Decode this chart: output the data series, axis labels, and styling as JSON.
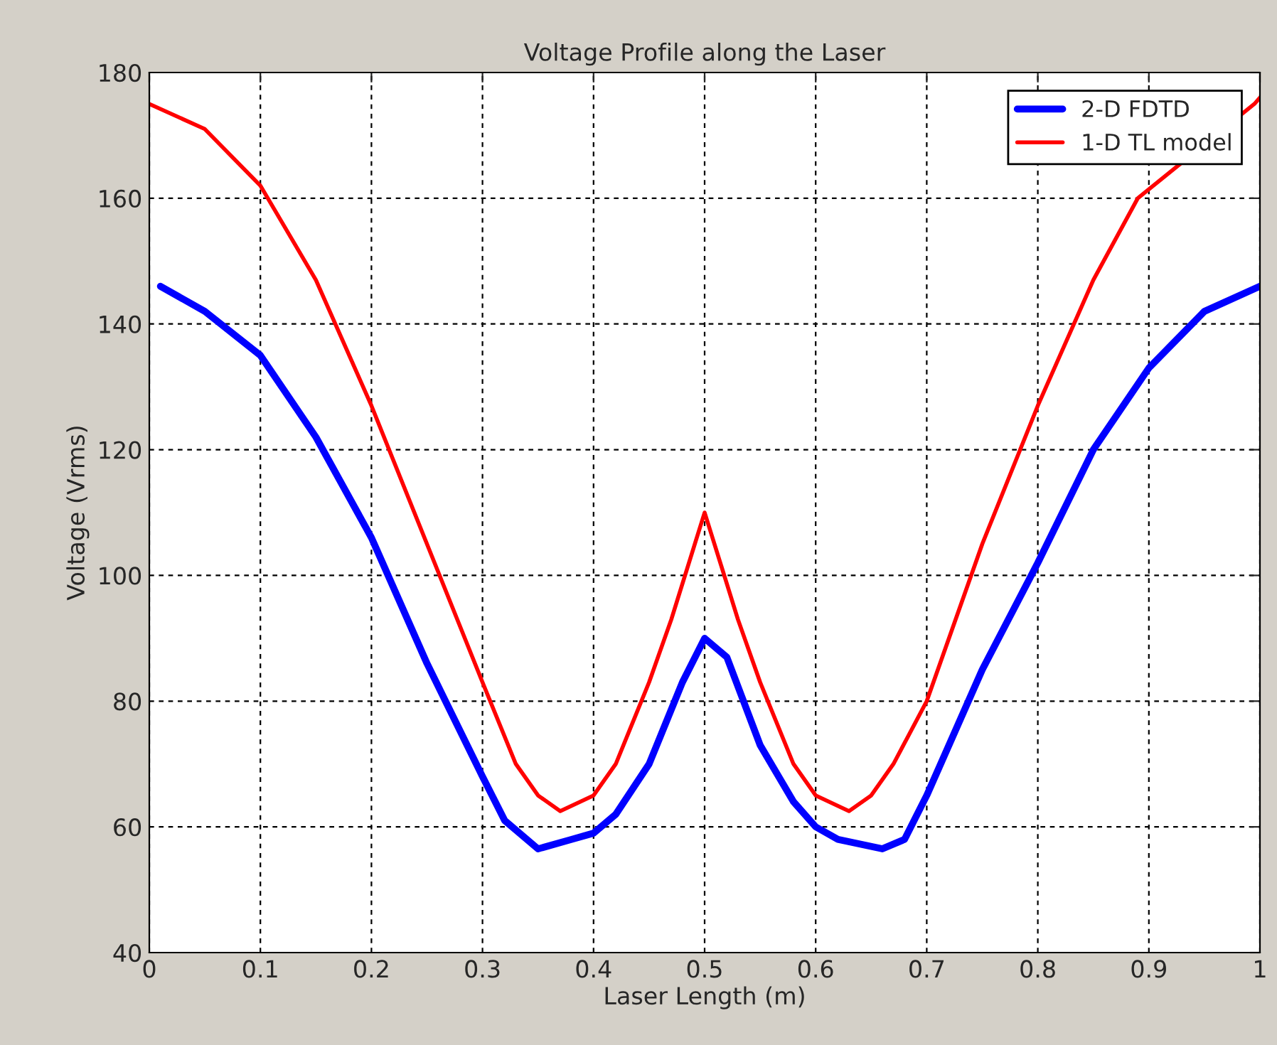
{
  "chart_data": {
    "type": "line",
    "title": "Voltage Profile along the Laser",
    "xlabel": "Laser Length (m)",
    "ylabel": "Voltage (Vrms)",
    "xlim": [
      0,
      1
    ],
    "ylim": [
      40,
      180
    ],
    "xticks": [
      0,
      0.1,
      0.2,
      0.3,
      0.4,
      0.5,
      0.6,
      0.7,
      0.8,
      0.9,
      1
    ],
    "yticks": [
      40,
      60,
      80,
      100,
      120,
      140,
      160,
      180
    ],
    "grid": true,
    "legend": "top right",
    "series": [
      {
        "name": "2-D FDTD",
        "color": "#0000ff",
        "x": [
          0.01,
          0.05,
          0.1,
          0.15,
          0.2,
          0.25,
          0.3,
          0.32,
          0.35,
          0.38,
          0.4,
          0.42,
          0.45,
          0.48,
          0.5,
          0.52,
          0.55,
          0.58,
          0.6,
          0.62,
          0.66,
          0.68,
          0.7,
          0.75,
          0.8,
          0.85,
          0.9,
          0.95,
          1.0
        ],
        "values": [
          146,
          142,
          135,
          122,
          106,
          86,
          68,
          61,
          56.5,
          58,
          59,
          62,
          70,
          83,
          90,
          87,
          73,
          64,
          60,
          58,
          56.5,
          58,
          65,
          85,
          102,
          120,
          133,
          142,
          146
        ]
      },
      {
        "name": "1-D TL model",
        "color": "#ff0000",
        "x": [
          0,
          0.05,
          0.1,
          0.15,
          0.2,
          0.25,
          0.3,
          0.33,
          0.35,
          0.37,
          0.4,
          0.42,
          0.45,
          0.47,
          0.5,
          0.53,
          0.55,
          0.58,
          0.6,
          0.63,
          0.65,
          0.67,
          0.7,
          0.75,
          0.8,
          0.85,
          0.89,
          0.95,
          0.995,
          1.0
        ],
        "values": [
          175,
          171,
          162,
          147,
          127,
          105,
          83,
          70,
          65,
          62.5,
          65,
          70,
          83,
          93,
          110,
          93,
          83,
          70,
          65,
          62.5,
          65,
          70,
          80,
          105,
          127,
          147,
          160,
          null,
          175,
          176
        ]
      }
    ]
  }
}
